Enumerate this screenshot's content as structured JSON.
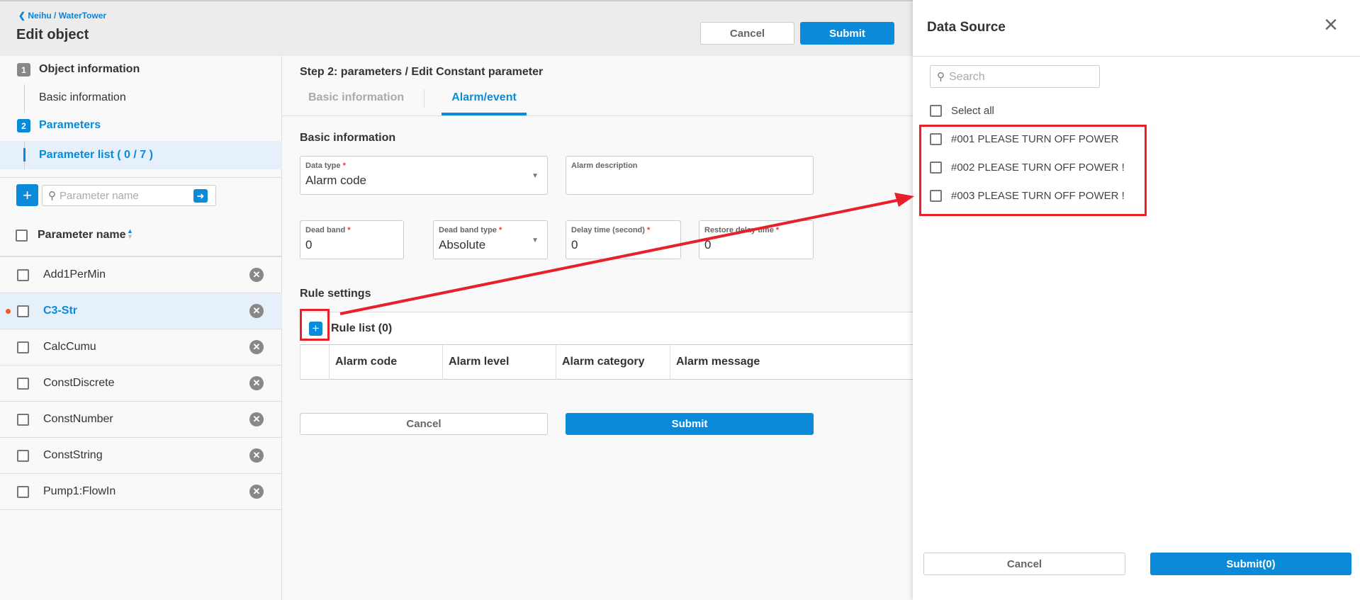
{
  "header": {
    "breadcrumb": "Neihu / WaterTower",
    "title": "Edit object",
    "cancel_label": "Cancel",
    "submit_label": "Submit"
  },
  "sidebar": {
    "steps": [
      {
        "num": "1",
        "label": "Object information",
        "sub": "Basic information"
      },
      {
        "num": "2",
        "label": "Parameters",
        "sub": "Parameter list ( 0 / 7 )"
      }
    ],
    "search_placeholder": "Parameter name",
    "column_header": "Parameter name",
    "parameters": [
      {
        "name": "Add1PerMin"
      },
      {
        "name": "C3-Str",
        "selected": true
      },
      {
        "name": "CalcCumu"
      },
      {
        "name": "ConstDiscrete"
      },
      {
        "name": "ConstNumber"
      },
      {
        "name": "ConstString"
      },
      {
        "name": "Pump1:FlowIn"
      }
    ]
  },
  "main": {
    "heading": "Step 2: parameters / Edit Constant parameter",
    "tabs": [
      {
        "label": "Basic information",
        "active": false
      },
      {
        "label": "Alarm/event",
        "active": true
      }
    ],
    "section_basic": "Basic information",
    "fields": {
      "data_type": {
        "label": "Data type",
        "value": "Alarm code"
      },
      "alarm_description": {
        "label": "Alarm description",
        "value": ""
      },
      "dead_band": {
        "label": "Dead band",
        "value": "0"
      },
      "dead_band_type": {
        "label": "Dead band type",
        "value": "Absolute"
      },
      "delay_time": {
        "label": "Delay time (second)",
        "value": "0"
      },
      "restore_delay": {
        "label": "Restore delay time",
        "value": "0"
      }
    },
    "section_rule": "Rule settings",
    "rule_list_label": "Rule list (0)",
    "rule_columns": [
      "Alarm code",
      "Alarm level",
      "Alarm category",
      "Alarm message"
    ],
    "cancel_label": "Cancel",
    "submit_label": "Submit"
  },
  "panel": {
    "title": "Data Source",
    "search_placeholder": "Search",
    "select_all": "Select all",
    "items": [
      "#001 PLEASE TURN OFF POWER",
      "#002 PLEASE TURN OFF POWER !",
      "#003 PLEASE TURN OFF POWER !"
    ],
    "cancel_label": "Cancel",
    "submit_label": "Submit(0)"
  },
  "colors": {
    "accent": "#0a8ad8",
    "annotation": "#e8202a",
    "selected_row": "#e6f0fb"
  }
}
